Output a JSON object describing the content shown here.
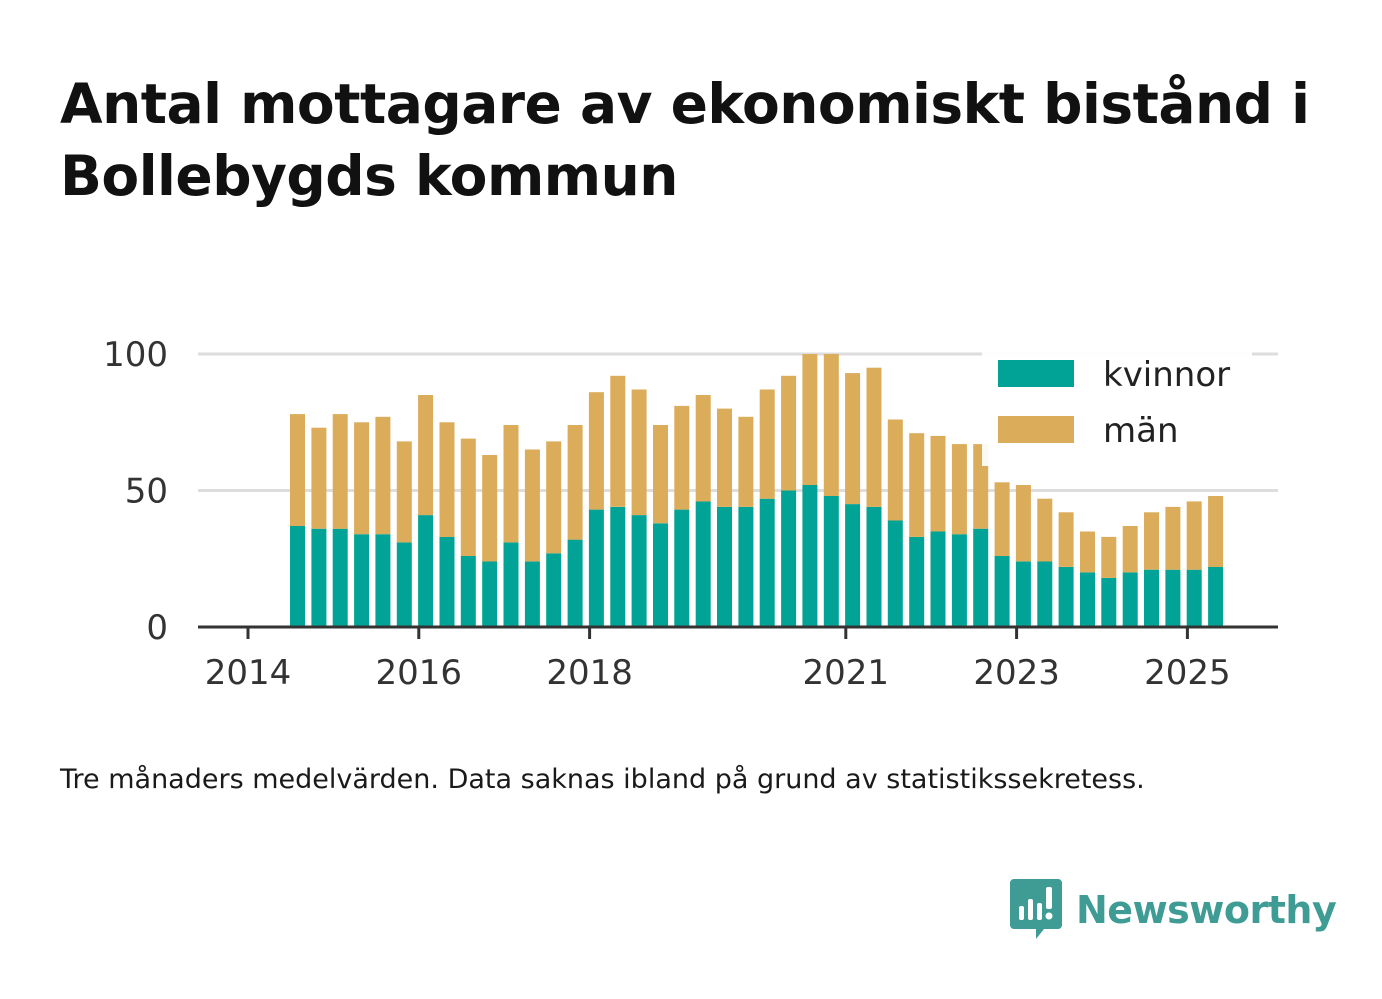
{
  "header": {
    "title": "Antal mottagare av ekonomiskt bistånd i Bollebygds kommun"
  },
  "footnote": "Tre månaders medelvärden. Data saknas ibland på grund av statistikssekretess.",
  "brand": {
    "name": "Newsworthy",
    "icon": "newsworthy-logo-icon",
    "color": "#3f9c95"
  },
  "chart_data": {
    "type": "bar",
    "stacked": true,
    "title": "Antal mottagare av ekonomiskt bistånd i Bollebygds kommun",
    "xlabel": "",
    "ylabel": "",
    "ylim": [
      0,
      100
    ],
    "xlim": [
      2014.0,
      2025.5
    ],
    "y_ticks": [
      0,
      50,
      100
    ],
    "x_ticks": [
      2014,
      2016,
      2018,
      2021,
      2023,
      2025
    ],
    "grid": true,
    "legend_position": "top-right",
    "x": [
      2014.58,
      2014.83,
      2015.08,
      2015.33,
      2015.58,
      2015.83,
      2016.08,
      2016.33,
      2016.58,
      2016.83,
      2017.08,
      2017.33,
      2017.58,
      2017.83,
      2018.08,
      2018.33,
      2018.58,
      2018.83,
      2019.08,
      2019.33,
      2019.58,
      2019.83,
      2020.08,
      2020.33,
      2020.58,
      2020.83,
      2021.08,
      2021.33,
      2021.58,
      2021.83,
      2022.08,
      2022.33,
      2022.58,
      2022.83,
      2023.08,
      2023.33,
      2023.58,
      2023.83,
      2024.08,
      2024.33,
      2024.58,
      2024.83,
      2025.08,
      2025.33
    ],
    "series": [
      {
        "name": "kvinnor",
        "color": "#00a396",
        "values": [
          37,
          36,
          36,
          34,
          34,
          31,
          41,
          33,
          26,
          24,
          31,
          24,
          27,
          32,
          43,
          44,
          41,
          38,
          43,
          46,
          44,
          44,
          47,
          50,
          52,
          48,
          45,
          44,
          39,
          33,
          35,
          34,
          36,
          26,
          24,
          24,
          22,
          20,
          18,
          20,
          21,
          21,
          21,
          22
        ]
      },
      {
        "name": "män",
        "color": "#dbac5a",
        "values": [
          41,
          37,
          42,
          41,
          43,
          37,
          44,
          42,
          43,
          39,
          43,
          41,
          41,
          42,
          43,
          48,
          46,
          36,
          38,
          39,
          36,
          33,
          40,
          42,
          48,
          52,
          48,
          51,
          37,
          38,
          35,
          33,
          31,
          27,
          28,
          23,
          20,
          15,
          15,
          17,
          21,
          23,
          25,
          26
        ]
      }
    ]
  }
}
